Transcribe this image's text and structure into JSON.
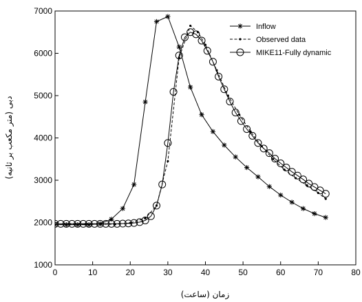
{
  "chart_data": {
    "type": "line",
    "xlabel": "زمان (ساعت)",
    "ylabel": "دبی (متر مکعب بر ثانیه)",
    "xlim": [
      0,
      80
    ],
    "ylim": [
      1000,
      7000
    ],
    "xticks": [
      0,
      10,
      20,
      30,
      40,
      50,
      60,
      70,
      80
    ],
    "yticks": [
      1000,
      2000,
      3000,
      4000,
      5000,
      6000,
      7000
    ],
    "grid": false,
    "legend_position": "top-right",
    "series": [
      {
        "name": "Inflow",
        "line": "solid",
        "marker": "star",
        "x": [
          0,
          3,
          6,
          9,
          12,
          15,
          18,
          21,
          24,
          27,
          30,
          33,
          36,
          39,
          42,
          45,
          48,
          51,
          54,
          57,
          60,
          63,
          66,
          69,
          72
        ],
        "y": [
          1950,
          1950,
          1950,
          1950,
          1970,
          2080,
          2330,
          2900,
          4850,
          6750,
          6870,
          6150,
          5200,
          4550,
          4150,
          3830,
          3550,
          3300,
          3080,
          2850,
          2650,
          2480,
          2330,
          2210,
          2120
        ]
      },
      {
        "name": "Observed data",
        "line": "dashed",
        "marker": "dot",
        "x": [
          0,
          4,
          8,
          12,
          16,
          20,
          24,
          27,
          30,
          33,
          36,
          38,
          40,
          43,
          46,
          49,
          52,
          55,
          58,
          61,
          64,
          67,
          70,
          72
        ],
        "y": [
          1950,
          1960,
          1960,
          1960,
          1960,
          1990,
          2100,
          2400,
          3450,
          5900,
          6650,
          6500,
          6200,
          5600,
          5000,
          4550,
          4150,
          3800,
          3500,
          3250,
          3050,
          2880,
          2700,
          2560
        ]
      },
      {
        "name": "MIKE11-Fully dynamic",
        "line": "solid",
        "marker": "circle",
        "x": [
          0,
          1.5,
          3,
          4.5,
          6,
          7.5,
          9,
          10.5,
          12,
          13.5,
          15,
          16.5,
          18,
          19.5,
          21,
          22.5,
          24,
          25.5,
          27,
          28.5,
          30,
          31.5,
          33,
          34.5,
          36,
          37.5,
          39,
          40.5,
          42,
          43.5,
          45,
          46.5,
          48,
          49.5,
          51,
          52.5,
          54,
          55.5,
          57,
          58.5,
          60,
          61.5,
          63,
          64.5,
          66,
          67.5,
          69,
          70.5,
          72
        ],
        "y": [
          1970,
          1970,
          1970,
          1970,
          1970,
          1970,
          1970,
          1970,
          1970,
          1970,
          1970,
          1970,
          1975,
          1980,
          1990,
          2010,
          2050,
          2150,
          2400,
          2900,
          3880,
          5090,
          5950,
          6380,
          6500,
          6450,
          6300,
          6060,
          5800,
          5450,
          5150,
          4860,
          4600,
          4400,
          4210,
          4050,
          3880,
          3750,
          3640,
          3510,
          3400,
          3300,
          3200,
          3110,
          3020,
          2920,
          2840,
          2760,
          2680
        ]
      }
    ]
  }
}
